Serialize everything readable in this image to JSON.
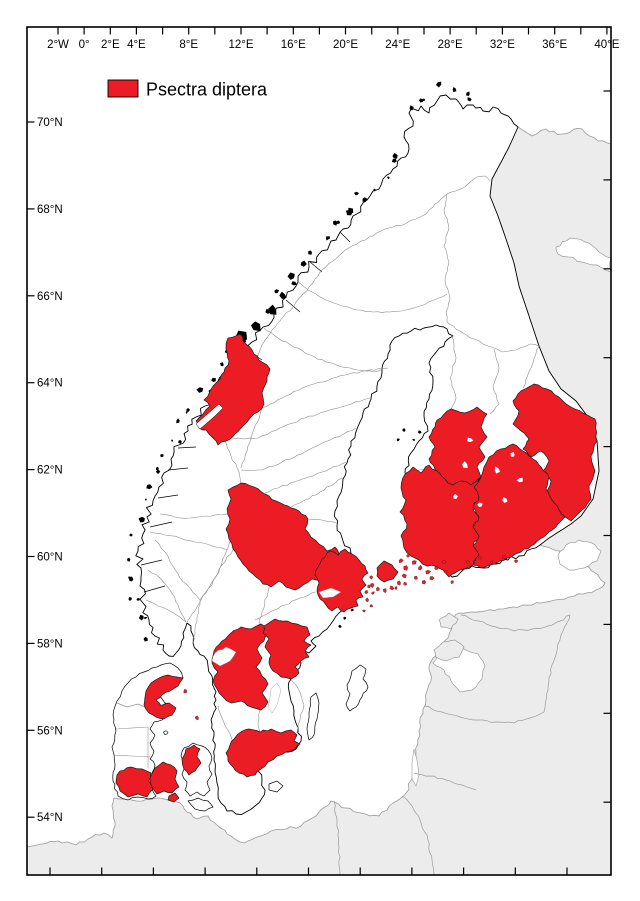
{
  "legend": {
    "label": "Psectra diptera"
  },
  "colors": {
    "highlight": "#EC1C24",
    "foreign_land": "#ECECEC",
    "foreign_border": "#9A9A9A",
    "province_border": "#8F8F8F",
    "coastline": "#000000",
    "red_border": "#1A1A1A",
    "sea": "#FFFFFF",
    "frame": "#000000",
    "label_text": "#000000"
  },
  "axes": {
    "top_labels": [
      {
        "text": "2°W",
        "lon": -2
      },
      {
        "text": "0°",
        "lon": 0
      },
      {
        "text": "2°E",
        "lon": 2
      },
      {
        "text": "4°E",
        "lon": 4
      },
      {
        "text": "8°E",
        "lon": 8
      },
      {
        "text": "12°E",
        "lon": 12
      },
      {
        "text": "16°E",
        "lon": 16
      },
      {
        "text": "20°E",
        "lon": 20
      },
      {
        "text": "24°E",
        "lon": 24
      },
      {
        "text": "28°E",
        "lon": 28
      },
      {
        "text": "32°E",
        "lon": 32
      },
      {
        "text": "36°E",
        "lon": 36
      },
      {
        "text": "40°E",
        "lon": 40
      }
    ],
    "top_tick_lons": [
      -2,
      0,
      2,
      4,
      6,
      8,
      10,
      12,
      14,
      16,
      18,
      20,
      22,
      24,
      26,
      28,
      30,
      32,
      34,
      36,
      38,
      40
    ],
    "left_labels": [
      {
        "text": "70°N",
        "lat": 70
      },
      {
        "text": "68°N",
        "lat": 68
      },
      {
        "text": "66°N",
        "lat": 66
      },
      {
        "text": "64°N",
        "lat": 64
      },
      {
        "text": "62°N",
        "lat": 62
      },
      {
        "text": "60°N",
        "lat": 60
      },
      {
        "text": "58°N",
        "lat": 58
      },
      {
        "text": "56°N",
        "lat": 56
      },
      {
        "text": "54°N",
        "lat": 54
      }
    ],
    "right_tick_lats": [
      70,
      68,
      66,
      64,
      62,
      60,
      58,
      56,
      54
    ],
    "bottom_tick_count": 11
  },
  "map_data": {
    "type": "choropleth-distribution",
    "species": "Psectra diptera",
    "area": "Fennoscandia and Denmark",
    "highlighted_regions": [
      "troendelag-norway",
      "dalarna-sweden",
      "uppland-stockholm-sweden",
      "vastergotland-sweden",
      "ostergotland-sweden",
      "smaland-blekinge-sweden",
      "aland-islands",
      "southwest-finland-uusimaa",
      "central-finland",
      "southeast-finland-savo-karelia",
      "northeast-finland-karelia",
      "north-jutland-denmark",
      "southwest-jutland-denmark",
      "funen-denmark",
      "west-zealand-denmark"
    ]
  }
}
